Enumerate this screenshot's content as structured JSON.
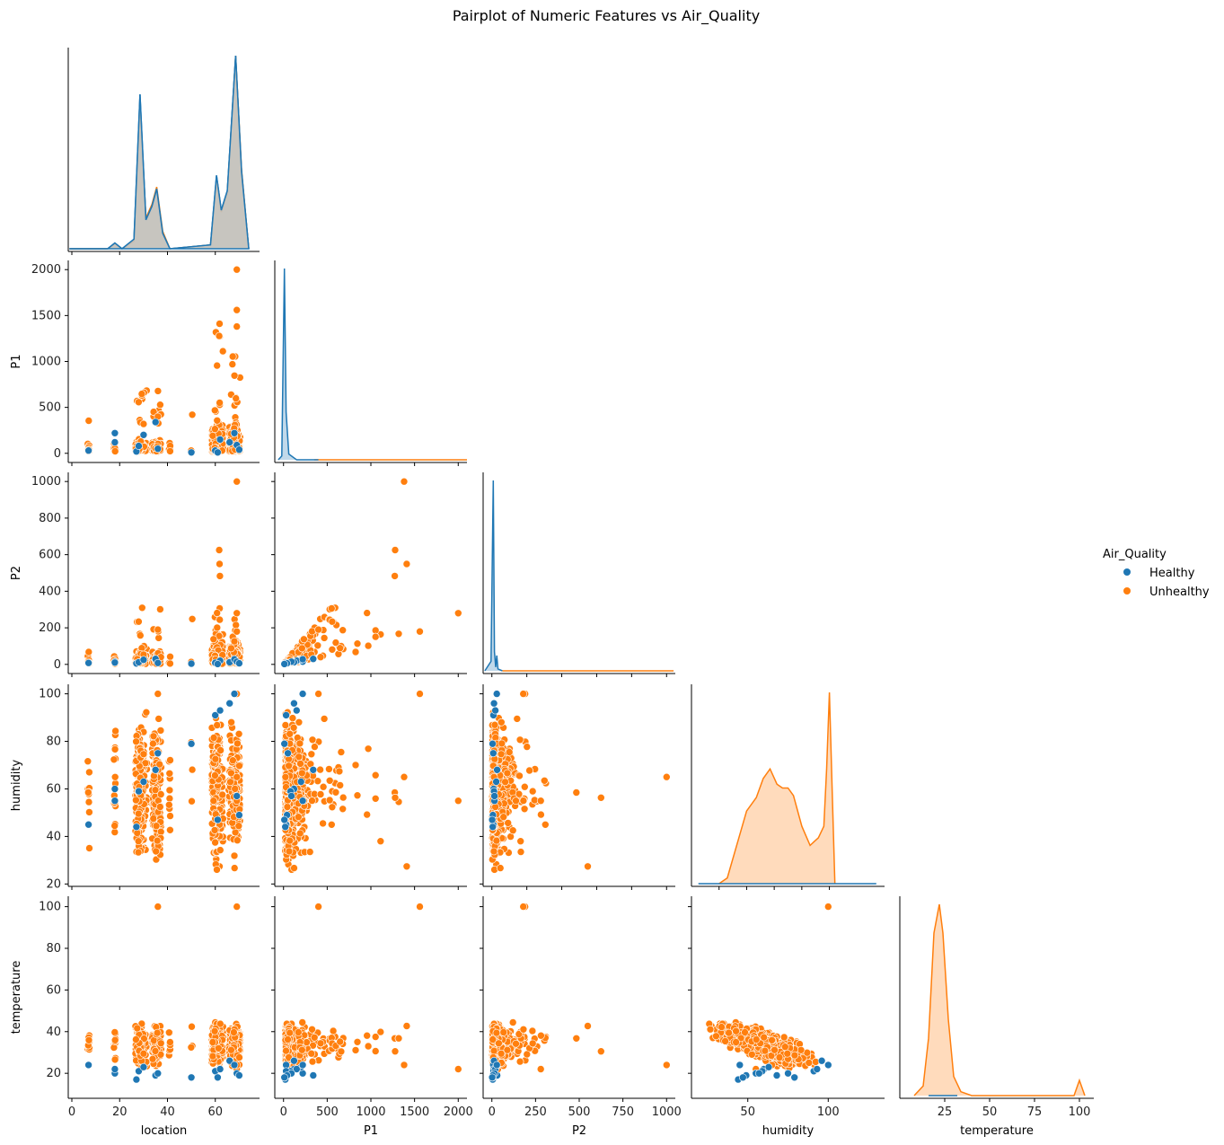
{
  "colors": {
    "healthy": "#1f77b4",
    "unhealthy": "#ff7f0e",
    "overlap_fill": "#c8c5bf"
  },
  "chart_data": {
    "type": "scatter",
    "title": "Pairplot of Numeric Features vs Air_Quality",
    "variables": [
      "location",
      "P1",
      "P2",
      "humidity",
      "temperature"
    ],
    "ranges": {
      "location": [
        -1.5,
        78.5
      ],
      "P1": [
        -100,
        2100
      ],
      "P2": [
        -50,
        1050
      ],
      "humidity": [
        19,
        104
      ],
      "temperature": [
        8,
        105
      ]
    },
    "ticks": {
      "location": [
        0,
        20,
        40,
        60
      ],
      "P1": [
        0,
        500,
        1000,
        1500,
        2000
      ],
      "P2": [
        0,
        200,
        400,
        600,
        800,
        1000
      ],
      "humidity": [
        20,
        40,
        60,
        80,
        100
      ],
      "temperature": [
        20,
        40,
        60,
        80,
        100
      ]
    },
    "bottom_ticks": {
      "location": [
        0,
        20,
        40,
        60
      ],
      "P1": [
        0,
        500,
        1000,
        1500,
        2000
      ],
      "P2": [
        0,
        250,
        500,
        750,
        1000
      ],
      "humidity": [
        50,
        100
      ],
      "temperature": [
        25,
        50,
        75,
        100
      ]
    },
    "diag_ranges": {
      "location": [
        -1.5,
        78.5
      ],
      "P1": [
        -100,
        2100
      ],
      "P2": [
        -50,
        1050
      ],
      "humidity": [
        0,
        140
      ],
      "temperature": [
        0,
        108
      ]
    },
    "legend": {
      "title": "Air_Quality",
      "entries": [
        "Healthy",
        "Unhealthy"
      ]
    },
    "kde": {
      "location": {
        "Healthy": [
          [
            -1,
            0
          ],
          [
            15,
            0
          ],
          [
            18,
            0.03
          ],
          [
            21,
            0
          ],
          [
            26,
            0.05
          ],
          [
            28.5,
            0.8
          ],
          [
            31,
            0.15
          ],
          [
            33.5,
            0.22
          ],
          [
            35.5,
            0.31
          ],
          [
            38,
            0.08
          ],
          [
            41,
            0
          ],
          [
            58,
            0.02
          ],
          [
            60.5,
            0.38
          ],
          [
            62.5,
            0.2
          ],
          [
            65,
            0.3
          ],
          [
            68.5,
            1.0
          ],
          [
            71,
            0.4
          ],
          [
            74,
            0
          ]
        ],
        "Unhealthy": [
          [
            -1,
            0
          ],
          [
            15,
            0
          ],
          [
            18,
            0.025
          ],
          [
            21,
            0
          ],
          [
            26,
            0.04
          ],
          [
            28.5,
            0.75
          ],
          [
            31,
            0.16
          ],
          [
            33.5,
            0.23
          ],
          [
            35.5,
            0.32
          ],
          [
            38,
            0.09
          ],
          [
            41,
            0
          ],
          [
            58,
            0.02
          ],
          [
            60.5,
            0.36
          ],
          [
            62.5,
            0.19
          ],
          [
            65,
            0.29
          ],
          [
            68.5,
            1.0
          ],
          [
            71,
            0.41
          ],
          [
            74,
            0
          ]
        ]
      },
      "P1": {
        "Healthy": [
          [
            -60,
            0
          ],
          [
            -20,
            0.02
          ],
          [
            10,
            1.0
          ],
          [
            30,
            0.25
          ],
          [
            60,
            0.03
          ],
          [
            150,
            0
          ],
          [
            400,
            0
          ]
        ],
        "Unhealthy": [
          [
            350,
            0
          ],
          [
            2100,
            0
          ]
        ]
      },
      "P2": {
        "Healthy": [
          [
            -40,
            0
          ],
          [
            -5,
            0.05
          ],
          [
            8,
            1.0
          ],
          [
            15,
            0.1
          ],
          [
            22,
            0.02
          ],
          [
            28,
            0.08
          ],
          [
            35,
            0.01
          ],
          [
            60,
            0
          ]
        ],
        "Unhealthy": [
          [
            60,
            0
          ],
          [
            1040,
            0
          ]
        ]
      },
      "humidity": {
        "Healthy": [
          [
            5,
            0
          ],
          [
            134,
            0
          ]
        ],
        "Unhealthy": [
          [
            20,
            0
          ],
          [
            26,
            0.03
          ],
          [
            32,
            0.18
          ],
          [
            40,
            0.38
          ],
          [
            47,
            0.45
          ],
          [
            52,
            0.55
          ],
          [
            57,
            0.6
          ],
          [
            62,
            0.52
          ],
          [
            66,
            0.5
          ],
          [
            70,
            0.5
          ],
          [
            74,
            0.46
          ],
          [
            80,
            0.3
          ],
          [
            86,
            0.2
          ],
          [
            89,
            0.22
          ],
          [
            92,
            0.24
          ],
          [
            96,
            0.3
          ],
          [
            98,
            0.6
          ],
          [
            100,
            1.0
          ],
          [
            102,
            0.5
          ],
          [
            104,
            0
          ]
        ]
      },
      "temperature": {
        "Healthy": [
          [
            16,
            0
          ],
          [
            32,
            0
          ]
        ],
        "Unhealthy": [
          [
            8,
            0
          ],
          [
            13,
            0.05
          ],
          [
            16,
            0.3
          ],
          [
            19,
            0.85
          ],
          [
            22,
            1.0
          ],
          [
            24,
            0.85
          ],
          [
            27,
            0.4
          ],
          [
            30,
            0.1
          ],
          [
            34,
            0.02
          ],
          [
            40,
            0
          ],
          [
            97,
            0
          ],
          [
            100,
            0.08
          ],
          [
            103,
            0
          ]
        ]
      }
    }
  }
}
